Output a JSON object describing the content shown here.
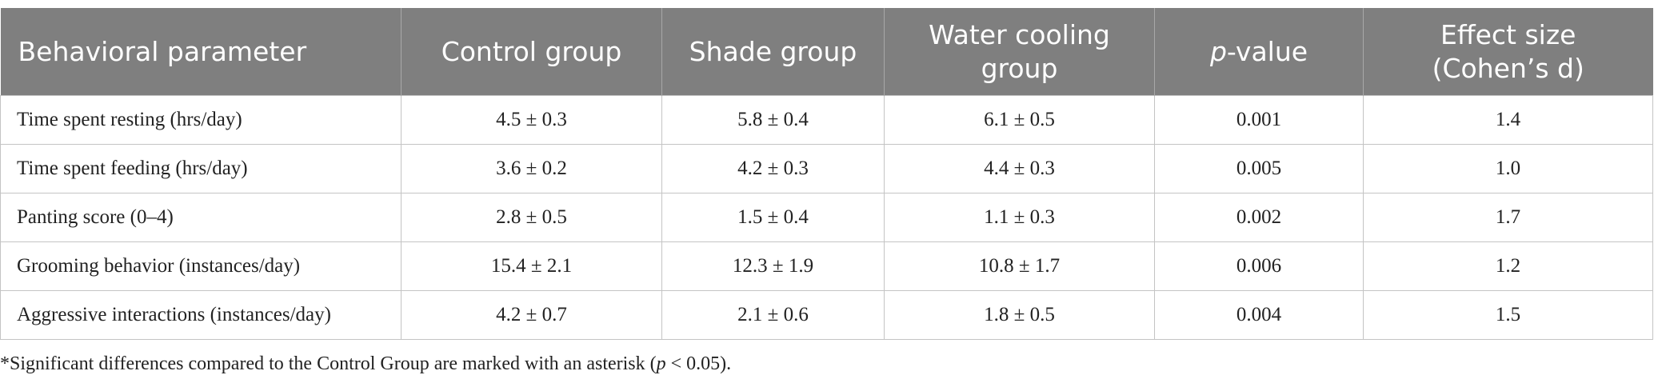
{
  "table": {
    "header": [
      [
        "Behavioral parameter"
      ],
      [
        "Control group"
      ],
      [
        "Shade group"
      ],
      [
        "Water cooling",
        "group"
      ],
      {
        "italic": "p",
        "text": "-value"
      },
      [
        "Effect size",
        "(Cohen’s d)"
      ]
    ],
    "rows": [
      [
        "Time spent resting (hrs/day)",
        "4.5 ± 0.3",
        "5.8 ± 0.4",
        "6.1 ± 0.5",
        "0.001",
        "1.4"
      ],
      [
        "Time spent feeding (hrs/day)",
        "3.6 ± 0.2",
        "4.2 ± 0.3",
        "4.4 ± 0.3",
        "0.005",
        "1.0"
      ],
      [
        "Panting score (0–4)",
        "2.8 ± 0.5",
        "1.5 ± 0.4",
        "1.1 ± 0.3",
        "0.002",
        "1.7"
      ],
      [
        "Grooming behavior (instances/day)",
        "15.4 ± 2.1",
        "12.3 ± 1.9",
        "10.8 ± 1.7",
        "0.006",
        "1.2"
      ],
      [
        "Aggressive interactions (instances/day)",
        "4.2 ± 0.7",
        "2.1 ± 0.6",
        "1.8 ± 0.5",
        "0.004",
        "1.5"
      ]
    ]
  },
  "footnote": [
    "*Significant differences compared to the Control Group are marked with an asterisk (",
    "p",
    " < 0.05)."
  ]
}
